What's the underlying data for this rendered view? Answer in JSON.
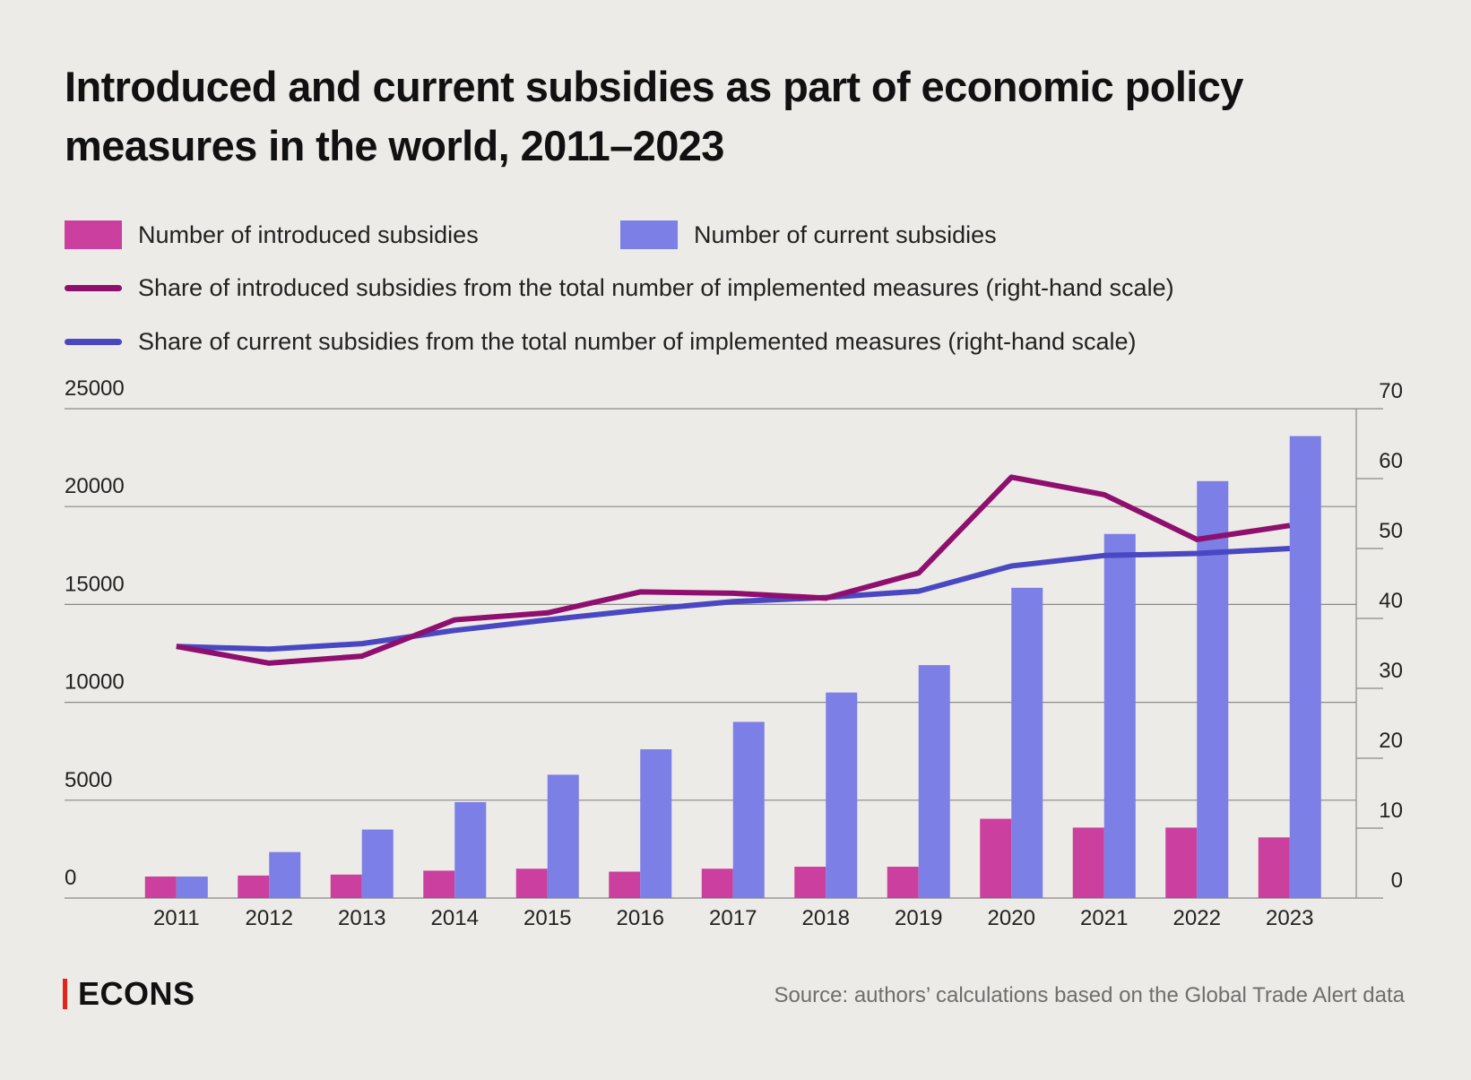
{
  "title": "Introduced and current subsidies as part of economic policy measures in the world, 2011–2023",
  "legend": {
    "introduced_bar": "Number of introduced subsidies",
    "current_bar": "Number of current subsidies",
    "introduced_share": "Share of introduced subsidies from the total number of implemented measures (right-hand scale)",
    "current_share": "Share of current subsidies from the total number of implemented measures (right-hand scale)"
  },
  "colors": {
    "background": "#EDEBE7",
    "introduced_bar": "#CB3F9E",
    "current_bar": "#7B7FE6",
    "introduced_line": "#8E0F6E",
    "current_line": "#4A47C2",
    "grid": "#8a8a8a",
    "brand_accent": "#E1251B"
  },
  "chart_data": {
    "type": "bar",
    "title": "Introduced and current subsidies as part of economic policy measures in the world, 2011–2023",
    "categories": [
      "2011",
      "2012",
      "2013",
      "2014",
      "2015",
      "2016",
      "2017",
      "2018",
      "2019",
      "2020",
      "2021",
      "2022",
      "2023"
    ],
    "left_axis": {
      "ylim": [
        0,
        25000
      ],
      "ticks": [
        "0",
        "5000",
        "10000",
        "15000",
        "20000",
        "25000"
      ]
    },
    "right_axis": {
      "ylim": [
        0,
        70
      ],
      "ticks": [
        "0",
        "10",
        "20",
        "30",
        "40",
        "50",
        "60",
        "70"
      ]
    },
    "series": [
      {
        "name": "Number of introduced subsidies",
        "kind": "bar",
        "axis": "left",
        "values": [
          1100,
          1150,
          1200,
          1400,
          1500,
          1350,
          1500,
          1600,
          1600,
          4050,
          3600,
          3600,
          3100
        ]
      },
      {
        "name": "Number of current subsidies",
        "kind": "bar",
        "axis": "left",
        "values": [
          1100,
          2350,
          3500,
          4900,
          6300,
          7600,
          9000,
          10500,
          11900,
          15850,
          18600,
          21300,
          23600
        ]
      },
      {
        "name": "Share of introduced subsidies from the total number of implemented measures (right-hand scale)",
        "kind": "line",
        "axis": "right",
        "values": [
          36.0,
          33.6,
          34.6,
          39.8,
          40.8,
          43.8,
          43.6,
          42.9,
          46.5,
          60.2,
          57.7,
          51.3,
          53.3
        ]
      },
      {
        "name": "Share of current subsidies from the total number of implemented measures (right-hand scale)",
        "kind": "line",
        "axis": "right",
        "values": [
          36.0,
          35.6,
          36.4,
          38.3,
          39.8,
          41.2,
          42.4,
          43.0,
          43.9,
          47.5,
          49.0,
          49.3,
          50.0
        ]
      }
    ],
    "grid": true,
    "legend_position": "top-left"
  },
  "footer": {
    "brand": "ECONS",
    "source": "Source: authors’ calculations based on the Global Trade Alert data"
  }
}
